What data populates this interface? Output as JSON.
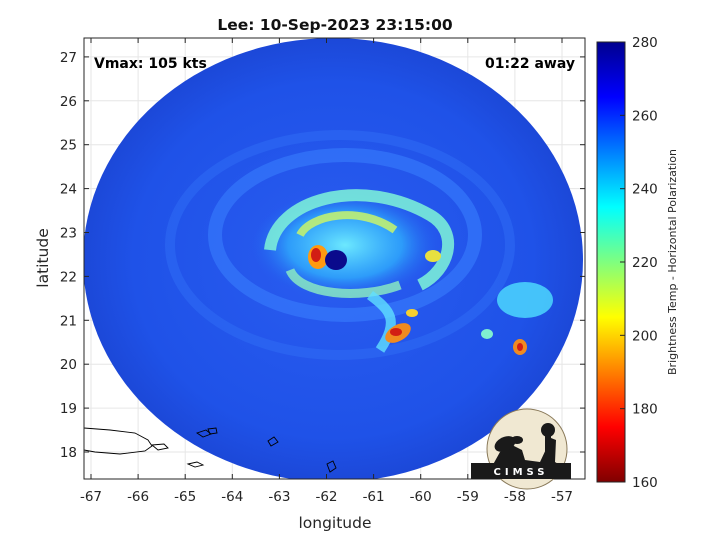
{
  "title": "Lee: 10-Sep-2023 23:15:00",
  "vmax_label": "Vmax: 105 kts",
  "time_away_label": "01:22 away",
  "x_axis": {
    "label": "longitude",
    "ticks": [
      "-67",
      "-66",
      "-65",
      "-64",
      "-63",
      "-62",
      "-61",
      "-60",
      "-59",
      "-58",
      "-57"
    ]
  },
  "y_axis": {
    "label": "latitude",
    "ticks": [
      "18",
      "19",
      "20",
      "21",
      "22",
      "23",
      "24",
      "25",
      "26",
      "27"
    ]
  },
  "colorbar": {
    "label": "Brightness Temp - Horizontal Polarization",
    "ticks": [
      "160",
      "180",
      "200",
      "220",
      "240",
      "260",
      "280"
    ],
    "colormap": "jet"
  },
  "logo_text": "CIMSS",
  "colors": {
    "swath_background": "#1e50e6",
    "eye": "#0a0a8c",
    "cold_core": "#d21e14"
  }
}
